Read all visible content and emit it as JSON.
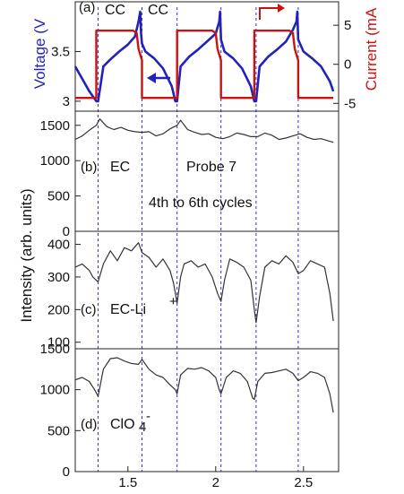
{
  "figure": {
    "shared_x_axis": {
      "ticks": [
        1.5,
        2,
        2.5
      ],
      "tick_labels": [
        "1.5",
        "2",
        "2.5"
      ],
      "xlim": [
        1.2,
        2.7
      ]
    },
    "cycle_boundaries_x": [
      1.33,
      1.58,
      1.78,
      2.03,
      2.23,
      2.47
    ],
    "colors": {
      "voltage": "#2222bb",
      "current": "#cc1111",
      "intensity": "#333333",
      "guide_lines": "#3333cc"
    },
    "shared_ylabel": "Intensity (arb. units)"
  },
  "chart_data": [
    {
      "panel": "(a)",
      "type": "line",
      "ylabel_left": "Voltage (V",
      "ylabel_right": "Current (mA",
      "ylim_left": [
        2.9,
        4.0
      ],
      "ylim_right": [
        -6,
        8
      ],
      "left_ticks": [
        "3",
        "3.5"
      ],
      "right_ticks": [
        "-5",
        "0",
        "5"
      ],
      "annotations": [
        "CC",
        "CC"
      ],
      "series": [
        {
          "name": "Voltage",
          "x": [
            1.2,
            1.28,
            1.32,
            1.33,
            1.36,
            1.4,
            1.45,
            1.5,
            1.54,
            1.56,
            1.57,
            1.575,
            1.58,
            1.6,
            1.65,
            1.7,
            1.75,
            1.77,
            1.78,
            1.8,
            1.85,
            1.9,
            1.95,
            2.0,
            2.02,
            2.025,
            2.03,
            2.05,
            2.1,
            2.15,
            2.2,
            2.22,
            2.23,
            2.25,
            2.3,
            2.35,
            2.4,
            2.44,
            2.46,
            2.465,
            2.47,
            2.5,
            2.55,
            2.6,
            2.65,
            2.67
          ],
          "y": [
            3.35,
            3.1,
            3.0,
            3.0,
            3.35,
            3.42,
            3.5,
            3.57,
            3.65,
            3.8,
            3.9,
            3.68,
            3.58,
            3.5,
            3.43,
            3.33,
            3.15,
            3.0,
            3.0,
            3.35,
            3.45,
            3.52,
            3.6,
            3.68,
            3.8,
            3.9,
            3.62,
            3.5,
            3.43,
            3.33,
            3.15,
            3.0,
            3.0,
            3.35,
            3.45,
            3.52,
            3.6,
            3.72,
            3.8,
            3.9,
            3.62,
            3.5,
            3.43,
            3.35,
            3.2,
            3.1
          ]
        },
        {
          "name": "Current",
          "x": [
            1.2,
            1.32,
            1.32,
            1.53,
            1.55,
            1.56,
            1.58,
            1.58,
            1.78,
            1.78,
            1.98,
            2.0,
            2.01,
            2.03,
            2.03,
            2.22,
            2.22,
            2.42,
            2.44,
            2.45,
            2.47,
            2.47,
            2.67
          ],
          "y": [
            -4.3,
            -4.3,
            4.3,
            4.3,
            4.0,
            2.0,
            0.5,
            -4.3,
            -4.3,
            4.3,
            4.3,
            4.0,
            2.0,
            0.5,
            -4.3,
            -4.3,
            4.3,
            4.3,
            4.0,
            2.0,
            0.5,
            -4.3,
            -4.3
          ]
        }
      ]
    },
    {
      "panel": "(b)",
      "type": "line",
      "label": "EC",
      "annotations": [
        "Probe 7",
        "4th to 6th cycles"
      ],
      "ylim": [
        0,
        1700
      ],
      "yticks": [
        0,
        500,
        1000,
        1500
      ],
      "series": [
        {
          "x": [
            1.2,
            1.24,
            1.28,
            1.32,
            1.34,
            1.38,
            1.42,
            1.46,
            1.5,
            1.54,
            1.58,
            1.62,
            1.66,
            1.7,
            1.74,
            1.78,
            1.8,
            1.84,
            1.88,
            1.92,
            1.96,
            2.0,
            2.04,
            2.08,
            2.12,
            2.16,
            2.2,
            2.24,
            2.28,
            2.32,
            2.36,
            2.4,
            2.44,
            2.48,
            2.52,
            2.56,
            2.6,
            2.64,
            2.67
          ],
          "y": [
            1300,
            1350,
            1430,
            1500,
            1590,
            1480,
            1440,
            1470,
            1430,
            1410,
            1400,
            1410,
            1350,
            1380,
            1450,
            1500,
            1570,
            1440,
            1400,
            1370,
            1380,
            1330,
            1310,
            1340,
            1390,
            1370,
            1340,
            1340,
            1390,
            1360,
            1300,
            1320,
            1350,
            1380,
            1330,
            1300,
            1310,
            1280,
            1260
          ]
        }
      ]
    },
    {
      "panel": "(c)",
      "type": "line",
      "label": "EC-Li",
      "label_sup": "+",
      "ylim": [
        80,
        440
      ],
      "yticks": [
        100,
        200,
        300,
        400
      ],
      "series": [
        {
          "x": [
            1.2,
            1.24,
            1.28,
            1.3,
            1.33,
            1.36,
            1.4,
            1.44,
            1.48,
            1.52,
            1.56,
            1.58,
            1.62,
            1.66,
            1.7,
            1.74,
            1.76,
            1.78,
            1.8,
            1.82,
            1.86,
            1.9,
            1.94,
            1.98,
            2.01,
            2.03,
            2.05,
            2.08,
            2.12,
            2.16,
            2.2,
            2.22,
            2.23,
            2.25,
            2.28,
            2.32,
            2.36,
            2.4,
            2.44,
            2.47,
            2.5,
            2.54,
            2.58,
            2.62,
            2.65,
            2.67
          ],
          "y": [
            330,
            340,
            320,
            300,
            285,
            340,
            380,
            350,
            390,
            380,
            405,
            375,
            360,
            330,
            355,
            320,
            280,
            220,
            300,
            340,
            350,
            330,
            340,
            300,
            250,
            225,
            290,
            355,
            345,
            330,
            290,
            200,
            160,
            240,
            330,
            350,
            340,
            365,
            345,
            310,
            320,
            350,
            340,
            330,
            250,
            165
          ]
        }
      ]
    },
    {
      "panel": "(d)",
      "type": "line",
      "label": "ClO",
      "label_sub": "4",
      "label_sup": "-",
      "ylim": [
        0,
        1500
      ],
      "yticks": [
        0,
        500,
        1000,
        1500
      ],
      "series": [
        {
          "x": [
            1.2,
            1.24,
            1.28,
            1.31,
            1.33,
            1.36,
            1.4,
            1.44,
            1.48,
            1.52,
            1.56,
            1.58,
            1.62,
            1.66,
            1.7,
            1.74,
            1.77,
            1.78,
            1.8,
            1.84,
            1.88,
            1.92,
            1.96,
            2.0,
            2.02,
            2.03,
            2.06,
            2.1,
            2.14,
            2.18,
            2.21,
            2.22,
            2.24,
            2.28,
            2.32,
            2.36,
            2.4,
            2.44,
            2.47,
            2.5,
            2.54,
            2.58,
            2.62,
            2.65,
            2.67
          ],
          "y": [
            1120,
            1150,
            1100,
            1000,
            920,
            1250,
            1380,
            1390,
            1350,
            1320,
            1310,
            1370,
            1250,
            1180,
            1150,
            1060,
            1000,
            950,
            1180,
            1260,
            1250,
            1270,
            1230,
            1150,
            1000,
            950,
            1150,
            1230,
            1200,
            1100,
            900,
            880,
            1100,
            1200,
            1210,
            1230,
            1250,
            1200,
            1110,
            1150,
            1220,
            1200,
            1150,
            950,
            720
          ]
        }
      ]
    }
  ]
}
